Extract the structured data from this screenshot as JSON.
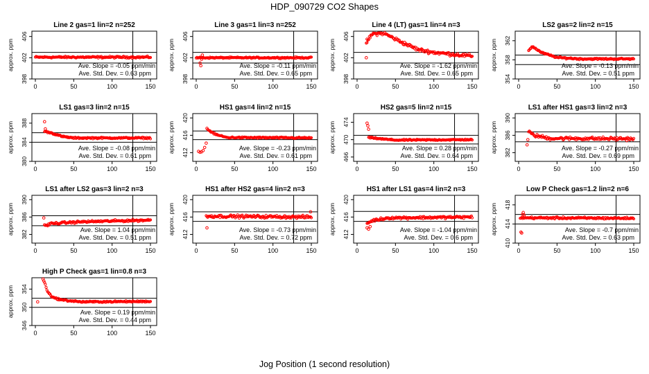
{
  "page": {
    "title": "HDP_090729  CO2 Shapes",
    "xlabel": "Jog Position (1 second resolution)",
    "ylabel": "approx. ppm",
    "slope_prefix": "Ave. Slope = ",
    "slope_unit": " ppm/min",
    "std_prefix": "Ave. Std. Dev. = ",
    "std_unit": " ppm"
  },
  "colors": {
    "points": "#ff0000",
    "axes": "#000000"
  },
  "chart_data": [
    {
      "type": "scatter",
      "title": "Line 2 gas=1 lin=2 n=252",
      "ylim": [
        398,
        407
      ],
      "yticks": [
        398,
        402,
        406
      ],
      "xlim": [
        0,
        150
      ],
      "xticks": [
        0,
        50,
        100,
        150
      ],
      "hlines": [
        403,
        401
      ],
      "vline": 127,
      "slope": "-0.05",
      "std": "0.63",
      "shape": [
        [
          0,
          402.1
        ],
        [
          150,
          402.1
        ]
      ],
      "noise": 0.2
    },
    {
      "type": "scatter",
      "title": "Line 3 gas=1 lin=3 n=252",
      "ylim": [
        398,
        407
      ],
      "yticks": [
        398,
        402,
        406
      ],
      "xlim": [
        0,
        150
      ],
      "xticks": [
        0,
        50,
        100,
        150
      ],
      "hlines": [
        403,
        401
      ],
      "vline": 127,
      "slope": "-0.11",
      "std": "0.65",
      "shape": [
        [
          0,
          402.0
        ],
        [
          150,
          402.0
        ]
      ],
      "noise": 0.15,
      "extra": [
        [
          5,
          401
        ],
        [
          6,
          400.5
        ],
        [
          7,
          401.7
        ],
        [
          8,
          402.5
        ]
      ]
    },
    {
      "type": "scatter",
      "title": "Line 4 (LT) gas=1 lin=4 n=3",
      "ylim": [
        398,
        407
      ],
      "yticks": [
        398,
        402,
        406
      ],
      "xlim": [
        0,
        150
      ],
      "xticks": [
        0,
        50,
        100,
        150
      ],
      "hlines": [
        403,
        401
      ],
      "vline": 127,
      "slope": "-1.62",
      "std": "0.65",
      "shape": [
        [
          12,
          404.8
        ],
        [
          20,
          406.5
        ],
        [
          35,
          406.6
        ],
        [
          60,
          404.8
        ],
        [
          80,
          403.5
        ],
        [
          100,
          403.0
        ],
        [
          150,
          402.3
        ]
      ],
      "noise": 0.4,
      "extra": [
        [
          12,
          402
        ],
        [
          13,
          405.5
        ]
      ]
    },
    {
      "type": "scatter",
      "title": "LS2 gas=2 lin=2 n=15",
      "ylim": [
        354,
        364
      ],
      "yticks": [
        354,
        358,
        362
      ],
      "xlim": [
        0,
        150
      ],
      "xticks": [
        0,
        50,
        100,
        150
      ],
      "hlines": [
        359,
        357
      ],
      "vline": 127,
      "slope": "-0.13",
      "std": "0.51",
      "shape": [
        [
          13,
          360
        ],
        [
          18,
          360.8
        ],
        [
          30,
          359.5
        ],
        [
          50,
          358.5
        ],
        [
          80,
          358.2
        ],
        [
          150,
          358.2
        ]
      ],
      "noise": 0.2
    },
    {
      "type": "scatter",
      "title": "LS1 gas=3 lin=2 n=15",
      "ylim": [
        380,
        390
      ],
      "yticks": [
        380,
        384,
        388
      ],
      "xlim": [
        0,
        150
      ],
      "xticks": [
        0,
        50,
        100,
        150
      ],
      "hlines": [
        386,
        384
      ],
      "vline": 127,
      "slope": "-0.08",
      "std": "0.61",
      "shape": [
        [
          12,
          386.3
        ],
        [
          20,
          386
        ],
        [
          35,
          385.2
        ],
        [
          50,
          384.9
        ],
        [
          150,
          384.9
        ]
      ],
      "noise": 0.18,
      "extra": [
        [
          12,
          388.3
        ],
        [
          13,
          386.8
        ]
      ]
    },
    {
      "type": "scatter",
      "title": "HS1 gas=4 lin=2 n=15",
      "ylim": [
        410,
        421
      ],
      "yticks": [
        412,
        416,
        420
      ],
      "xlim": [
        0,
        150
      ],
      "xticks": [
        0,
        50,
        100,
        150
      ],
      "hlines": [
        417,
        415
      ],
      "vline": 127,
      "slope": "-0.23",
      "std": "0.61",
      "shape": [
        [
          15,
          417.3
        ],
        [
          25,
          416.2
        ],
        [
          40,
          415.5
        ],
        [
          150,
          415.4
        ]
      ],
      "noise": 0.2,
      "extra": [
        [
          3,
          412.3
        ],
        [
          5,
          412.1
        ],
        [
          7,
          412.2
        ],
        [
          9,
          412.5
        ],
        [
          11,
          413.2
        ],
        [
          13,
          414.2
        ],
        [
          14,
          417.6
        ]
      ]
    },
    {
      "type": "scatter",
      "title": "HS2 gas=5 lin=2 n=15",
      "ylim": [
        465,
        476
      ],
      "yticks": [
        466,
        470,
        474
      ],
      "xlim": [
        0,
        150
      ],
      "xticks": [
        0,
        50,
        100,
        150
      ],
      "hlines": [
        471,
        469
      ],
      "vline": 127,
      "slope": "0.28",
      "std": "0.64",
      "shape": [
        [
          15,
          470.5
        ],
        [
          30,
          470.2
        ],
        [
          50,
          469.9
        ],
        [
          150,
          470.0
        ]
      ],
      "noise": 0.18,
      "extra": [
        [
          13,
          473.8
        ],
        [
          14,
          473.2
        ],
        [
          15,
          472.4
        ]
      ]
    },
    {
      "type": "scatter",
      "title": "LS1 after HS1 gas=3 lin=2 n=3",
      "ylim": [
        380,
        391
      ],
      "yticks": [
        382,
        386,
        390
      ],
      "xlim": [
        0,
        150
      ],
      "xticks": [
        0,
        50,
        100,
        150
      ],
      "hlines": [
        386.8,
        384.5
      ],
      "vline": 127,
      "slope": "-0.27",
      "std": "0.69",
      "shape": [
        [
          13,
          386.8
        ],
        [
          20,
          386
        ],
        [
          40,
          385.3
        ],
        [
          150,
          385.2
        ]
      ],
      "noise": 0.45,
      "extra": [
        [
          11,
          383.8
        ],
        [
          12,
          385
        ]
      ]
    },
    {
      "type": "scatter",
      "title": "LS1 after LS2 gas=3 lin=2 n=3",
      "ylim": [
        380,
        391
      ],
      "yticks": [
        382,
        386,
        390
      ],
      "xlim": [
        0,
        150
      ],
      "xticks": [
        0,
        50,
        100,
        150
      ],
      "hlines": [
        386.3,
        384
      ],
      "vline": 127,
      "slope": "1.04",
      "std": "0.51",
      "shape": [
        [
          13,
          383.9
        ],
        [
          20,
          384.5
        ],
        [
          60,
          384.9
        ],
        [
          150,
          385.3
        ]
      ],
      "noise": 0.3,
      "extra": [
        [
          11,
          385.8
        ],
        [
          12,
          384.2
        ]
      ]
    },
    {
      "type": "scatter",
      "title": "HS1 after HS2 gas=4 lin=2 n=3",
      "ylim": [
        410,
        421
      ],
      "yticks": [
        412,
        416,
        420
      ],
      "xlim": [
        0,
        150
      ],
      "xticks": [
        0,
        50,
        100,
        150
      ],
      "hlines": [
        417.2,
        415
      ],
      "vline": 127,
      "slope": "-0.73",
      "std": "0.72",
      "shape": [
        [
          13,
          416.2
        ],
        [
          150,
          416.0
        ]
      ],
      "noise": 0.4,
      "extra": [
        [
          14,
          413.5
        ],
        [
          149,
          417.2
        ]
      ]
    },
    {
      "type": "scatter",
      "title": "HS1 after LS1 gas=4 lin=2 n=3",
      "ylim": [
        410,
        421
      ],
      "yticks": [
        412,
        416,
        420
      ],
      "xlim": [
        0,
        150
      ],
      "xticks": [
        0,
        50,
        100,
        150
      ],
      "hlines": [
        417.3,
        415
      ],
      "vline": 127,
      "slope": "-1.04",
      "std": "0.6",
      "shape": [
        [
          13,
          414.5
        ],
        [
          20,
          415.2
        ],
        [
          40,
          415.8
        ],
        [
          150,
          416.0
        ]
      ],
      "noise": 0.35,
      "extra": [
        [
          13,
          413.5
        ],
        [
          15,
          413.2
        ],
        [
          17,
          413.8
        ]
      ]
    },
    {
      "type": "scatter",
      "title": "Low P Check gas=1.2 lin=2 n=6",
      "ylim": [
        410,
        420
      ],
      "yticks": [
        410,
        414,
        418
      ],
      "xlim": [
        0,
        150
      ],
      "xticks": [
        0,
        50,
        100,
        150
      ],
      "hlines": [
        416,
        414
      ],
      "vline": 127,
      "slope": "-0.7",
      "std": "0.63",
      "shape": [
        [
          2,
          415.3
        ],
        [
          150,
          415.2
        ]
      ],
      "noise": 0.25,
      "extra": [
        [
          3,
          412.3
        ],
        [
          4,
          412.1
        ],
        [
          5,
          416.0
        ],
        [
          6,
          416.4
        ],
        [
          7,
          415.9
        ]
      ]
    },
    {
      "type": "scatter",
      "title": "High P Check gas=1 lin=0.8 n=3",
      "ylim": [
        346,
        356.5
      ],
      "yticks": [
        346,
        350,
        354
      ],
      "xlim": [
        0,
        150
      ],
      "xticks": [
        0,
        50,
        100,
        150
      ],
      "hlines": [
        352,
        350
      ],
      "vline": 127,
      "slope": "0.19",
      "std": "0.44",
      "shape": [
        [
          12,
          355.5
        ],
        [
          15,
          353.8
        ],
        [
          22,
          352.2
        ],
        [
          35,
          351.6
        ],
        [
          60,
          351.2
        ],
        [
          150,
          351.3
        ]
      ],
      "noise": 0.2,
      "extra": [
        [
          3,
          351.2
        ],
        [
          10,
          356.2
        ],
        [
          11,
          355.8
        ]
      ]
    }
  ]
}
